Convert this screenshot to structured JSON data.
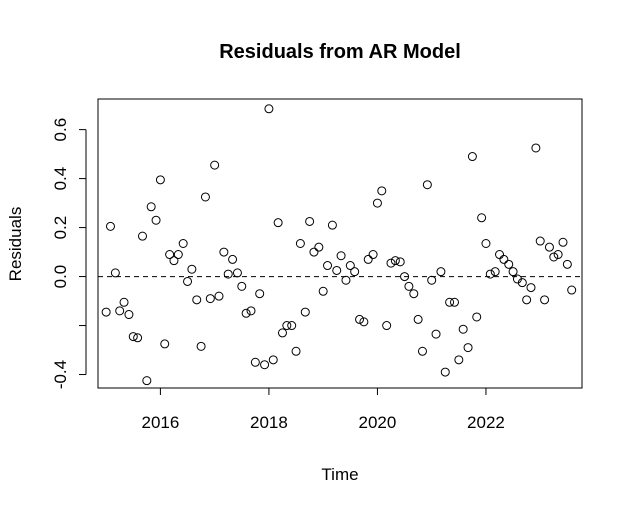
{
  "chart_data": {
    "type": "scatter",
    "title": "Residuals from AR Model",
    "xlabel": "Time",
    "ylabel": "Residuals",
    "xlim": [
      2014.85,
      2023.77
    ],
    "ylim": [
      -0.455,
      0.725
    ],
    "x_ticks": [
      2016,
      2018,
      2020,
      2022
    ],
    "x_tick_labels": [
      "2016",
      "2018",
      "2020",
      "2022"
    ],
    "y_ticks": [
      -0.4,
      0.0,
      0.2,
      0.4,
      0.6
    ],
    "y_tick_labels": [
      "-0.4",
      "0.0",
      "0.2",
      "0.4",
      "0.6"
    ],
    "y_minor_ticks": [
      -0.2
    ],
    "reference_line": {
      "y": 0,
      "style": "dashed"
    },
    "grid": false,
    "marker": "open-circle",
    "series": [
      {
        "x": [
          2015.0,
          2015.08,
          2015.17,
          2015.25,
          2015.33,
          2015.42,
          2015.5,
          2015.58,
          2015.67,
          2015.75,
          2015.83,
          2015.92,
          2016.0,
          2016.08,
          2016.17,
          2016.25,
          2016.33,
          2016.42,
          2016.5,
          2016.58,
          2016.67,
          2016.75,
          2016.83,
          2016.92,
          2017.0,
          2017.08,
          2017.17,
          2017.25,
          2017.33,
          2017.42,
          2017.5,
          2017.58,
          2017.67,
          2017.75,
          2017.83,
          2017.92,
          2018.0,
          2018.08,
          2018.17,
          2018.25,
          2018.33,
          2018.42,
          2018.5,
          2018.58,
          2018.67,
          2018.75,
          2018.83,
          2018.92,
          2019.0,
          2019.08,
          2019.17,
          2019.25,
          2019.33,
          2019.42,
          2019.5,
          2019.58,
          2019.67,
          2019.75,
          2019.83,
          2019.92,
          2020.0,
          2020.08,
          2020.17,
          2020.25,
          2020.33,
          2020.42,
          2020.5,
          2020.58,
          2020.67,
          2020.75,
          2020.83,
          2020.92,
          2021.0,
          2021.08,
          2021.17,
          2021.25,
          2021.33,
          2021.42,
          2021.5,
          2021.58,
          2021.67,
          2021.75,
          2021.83,
          2021.92,
          2022.0,
          2022.08,
          2022.17,
          2022.25,
          2022.33,
          2022.42,
          2022.5,
          2022.58,
          2022.67,
          2022.75,
          2022.83,
          2022.92,
          2023.0,
          2023.08,
          2023.17,
          2023.25,
          2023.33,
          2023.42,
          2023.5,
          2023.58
        ],
        "y": [
          -0.145,
          0.205,
          0.015,
          -0.14,
          -0.105,
          -0.155,
          -0.245,
          -0.25,
          0.165,
          -0.425,
          0.285,
          0.23,
          0.395,
          -0.275,
          0.09,
          0.065,
          0.09,
          0.135,
          -0.02,
          0.03,
          -0.095,
          -0.285,
          0.325,
          -0.09,
          0.455,
          -0.08,
          0.1,
          0.01,
          0.07,
          0.015,
          -0.04,
          -0.15,
          -0.14,
          -0.35,
          -0.07,
          -0.36,
          0.685,
          -0.34,
          0.22,
          -0.23,
          -0.2,
          -0.2,
          -0.305,
          0.135,
          -0.145,
          0.225,
          0.1,
          0.12,
          -0.06,
          0.045,
          0.21,
          0.025,
          0.085,
          -0.015,
          0.045,
          0.02,
          -0.175,
          -0.185,
          0.07,
          0.09,
          0.3,
          0.35,
          -0.2,
          0.055,
          0.065,
          0.06,
          0.0,
          -0.04,
          -0.07,
          -0.175,
          -0.305,
          0.375,
          -0.015,
          -0.235,
          0.02,
          -0.39,
          -0.105,
          -0.105,
          -0.34,
          -0.215,
          -0.29,
          0.49,
          -0.165,
          0.24,
          0.135,
          0.01,
          0.02,
          0.09,
          0.07,
          0.05,
          0.02,
          -0.01,
          -0.025,
          -0.095,
          -0.045,
          0.525,
          0.145,
          -0.095,
          0.12,
          0.08,
          0.09,
          0.14,
          0.05,
          -0.055
        ]
      }
    ]
  }
}
